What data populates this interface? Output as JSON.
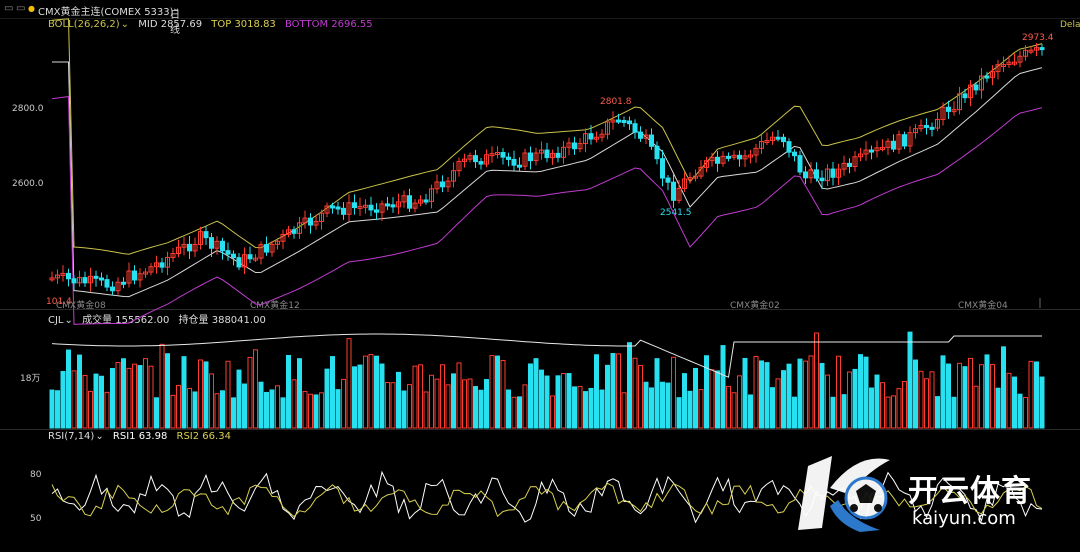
{
  "toolbar": {
    "instrument": "CMX黄金主连(COMEX 5333)",
    "period": "日线"
  },
  "boll": {
    "label": "BOLL(26,26,2)",
    "mid": "MID 2857.69",
    "top": "TOP 3018.83",
    "bottom": "BOTTOM 2696.55"
  },
  "price_axis": [
    "2800.0",
    "2600.0"
  ],
  "price_labels": {
    "high1": "2801.8",
    "low1": "2541.5",
    "high2": "2973.4",
    "left": "101.4",
    "del": "Dela"
  },
  "contract_marks": [
    "CMX黄金08",
    "CMX黄金12",
    "CMX黄金02",
    "CMX黄金04"
  ],
  "volume": {
    "label": "CJL",
    "vol": "成交量 155562.00",
    "oi": "持仓量 388041.00",
    "axis": "18万"
  },
  "rsi": {
    "label": "RSI(7,14)",
    "rsi1": "RSI1 63.98",
    "rsi2": "RSI2 66.34",
    "axis": [
      "80",
      "50"
    ]
  },
  "watermark": {
    "cn": "开云体育",
    "en": "kaiyun.com"
  },
  "colors": {
    "up": "#ff3b30",
    "down": "#27e0f0",
    "mid": "#d9d9d9",
    "top": "#c9c34a",
    "bottom": "#c03cd0",
    "rsi1": "#ffffff",
    "rsi2": "#d8d050"
  }
}
